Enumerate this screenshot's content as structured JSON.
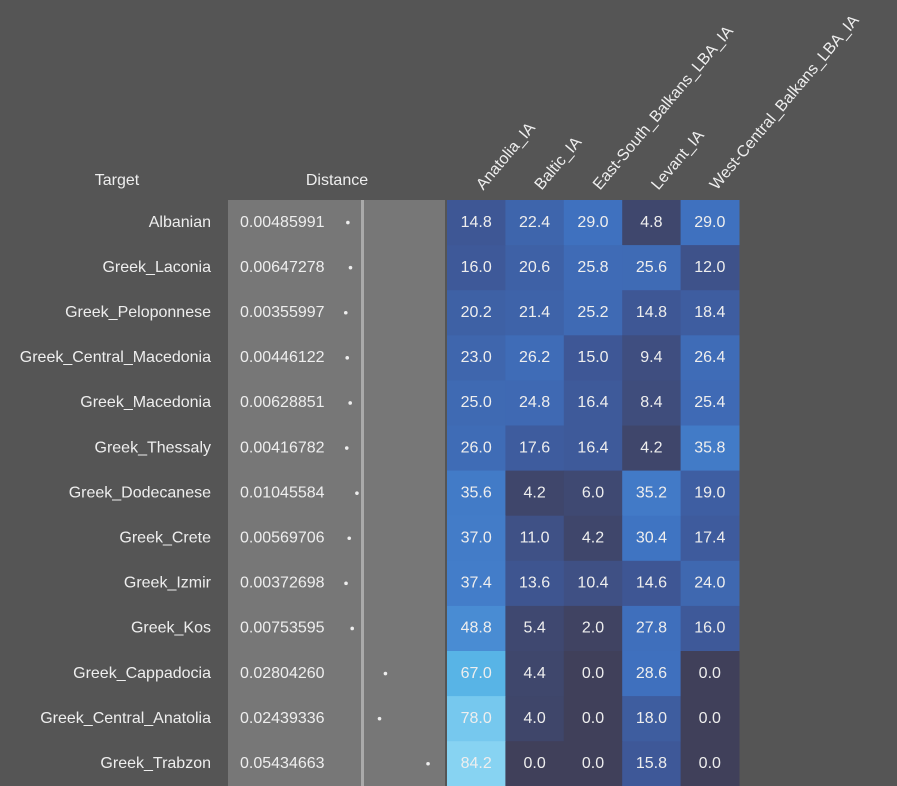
{
  "header": {
    "target": "Target",
    "distance": "Distance",
    "columns": [
      "Anatolia_IA",
      "Baltic_IA",
      "East-South_Balkans_LBA_IA",
      "Levant_IA",
      "West-Central_Balkans_LBA_IA"
    ]
  },
  "rows": [
    {
      "name": "Albanian",
      "distance": "0.00485991",
      "values": [
        "14.8",
        "22.4",
        "29.0",
        "4.8",
        "29.0"
      ]
    },
    {
      "name": "Greek_Laconia",
      "distance": "0.00647278",
      "values": [
        "16.0",
        "20.6",
        "25.8",
        "25.6",
        "12.0"
      ]
    },
    {
      "name": "Greek_Peloponnese",
      "distance": "0.00355997",
      "values": [
        "20.2",
        "21.4",
        "25.2",
        "14.8",
        "18.4"
      ]
    },
    {
      "name": "Greek_Central_Macedonia",
      "distance": "0.00446122",
      "values": [
        "23.0",
        "26.2",
        "15.0",
        "9.4",
        "26.4"
      ]
    },
    {
      "name": "Greek_Macedonia",
      "distance": "0.00628851",
      "values": [
        "25.0",
        "24.8",
        "16.4",
        "8.4",
        "25.4"
      ]
    },
    {
      "name": "Greek_Thessaly",
      "distance": "0.00416782",
      "values": [
        "26.0",
        "17.6",
        "16.4",
        "4.2",
        "35.8"
      ]
    },
    {
      "name": "Greek_Dodecanese",
      "distance": "0.01045584",
      "values": [
        "35.6",
        "4.2",
        "6.0",
        "35.2",
        "19.0"
      ]
    },
    {
      "name": "Greek_Crete",
      "distance": "0.00569706",
      "values": [
        "37.0",
        "11.0",
        "4.2",
        "30.4",
        "17.4"
      ]
    },
    {
      "name": "Greek_Izmir",
      "distance": "0.00372698",
      "values": [
        "37.4",
        "13.6",
        "10.4",
        "14.6",
        "24.0"
      ]
    },
    {
      "name": "Greek_Kos",
      "distance": "0.00753595",
      "values": [
        "48.8",
        "5.4",
        "2.0",
        "27.8",
        "16.0"
      ]
    },
    {
      "name": "Greek_Cappadocia",
      "distance": "0.02804260",
      "values": [
        "67.0",
        "4.4",
        "0.0",
        "28.6",
        "0.0"
      ]
    },
    {
      "name": "Greek_Central_Anatolia",
      "distance": "0.02439336",
      "values": [
        "78.0",
        "4.0",
        "0.0",
        "18.0",
        "0.0"
      ]
    },
    {
      "name": "Greek_Trabzon",
      "distance": "0.05434663",
      "values": [
        "84.2",
        "0.0",
        "0.0",
        "15.8",
        "0.0"
      ]
    }
  ]
}
